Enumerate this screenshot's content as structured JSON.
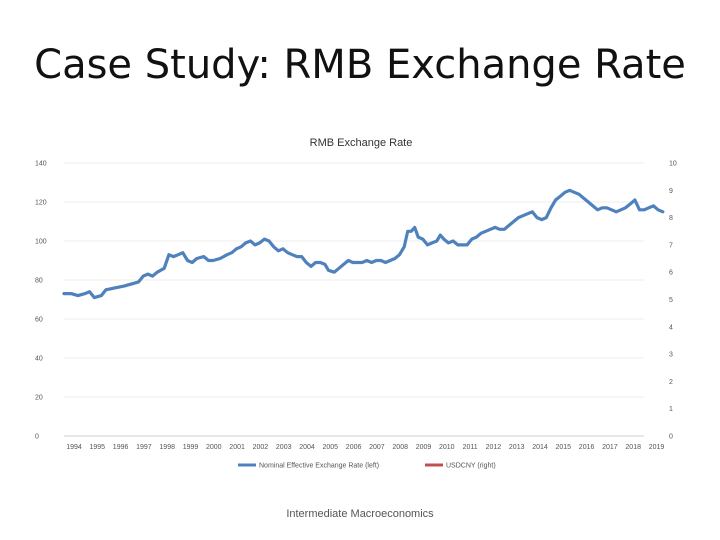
{
  "slide": {
    "title": "Case Study: RMB Exchange Rate",
    "footer": "Intermediate Macroeconomics"
  },
  "chart_data": {
    "type": "line",
    "title": "RMB Exchange Rate",
    "xlabel": "",
    "ylabel_left": "",
    "ylabel_right": "",
    "x_categories": [
      "1994",
      "1995",
      "1996",
      "1997",
      "1998",
      "1999",
      "2000",
      "2001",
      "2002",
      "2003",
      "2004",
      "2005",
      "2006",
      "2007",
      "2008",
      "2009",
      "2010",
      "2011",
      "2012",
      "2013",
      "2014",
      "2015",
      "2016",
      "2017",
      "2018",
      "2019"
    ],
    "y_left_ticks": [
      0,
      20,
      40,
      60,
      80,
      100,
      120,
      140
    ],
    "y_right_ticks": [
      0,
      1,
      2,
      3,
      4,
      5,
      6,
      7,
      8,
      9,
      10
    ],
    "ylim_left": [
      0,
      140
    ],
    "ylim_right": [
      0,
      10
    ],
    "grid": true,
    "legend_position": "bottom",
    "series": [
      {
        "name": "Nominal Effective Exchange Rate (left)",
        "axis": "left",
        "color": "#4f81bd",
        "points": [
          [
            1994.0,
            73
          ],
          [
            1994.3,
            73
          ],
          [
            1994.6,
            72
          ],
          [
            1994.9,
            73
          ],
          [
            1995.1,
            74
          ],
          [
            1995.3,
            71
          ],
          [
            1995.6,
            72
          ],
          [
            1995.8,
            75
          ],
          [
            1996.2,
            76
          ],
          [
            1996.6,
            77
          ],
          [
            1996.9,
            78
          ],
          [
            1997.2,
            79
          ],
          [
            1997.4,
            82
          ],
          [
            1997.6,
            83
          ],
          [
            1997.8,
            82
          ],
          [
            1998.0,
            84
          ],
          [
            1998.3,
            86
          ],
          [
            1998.5,
            93
          ],
          [
            1998.7,
            92
          ],
          [
            1998.9,
            93
          ],
          [
            1999.1,
            94
          ],
          [
            1999.3,
            90
          ],
          [
            1999.5,
            89
          ],
          [
            1999.7,
            91
          ],
          [
            2000.0,
            92
          ],
          [
            2000.2,
            90
          ],
          [
            2000.4,
            90
          ],
          [
            2000.7,
            91
          ],
          [
            2001.0,
            93
          ],
          [
            2001.2,
            94
          ],
          [
            2001.4,
            96
          ],
          [
            2001.6,
            97
          ],
          [
            2001.8,
            99
          ],
          [
            2002.0,
            100
          ],
          [
            2002.2,
            98
          ],
          [
            2002.4,
            99
          ],
          [
            2002.6,
            101
          ],
          [
            2002.8,
            100
          ],
          [
            2003.0,
            97
          ],
          [
            2003.2,
            95
          ],
          [
            2003.4,
            96
          ],
          [
            2003.6,
            94
          ],
          [
            2003.8,
            93
          ],
          [
            2004.0,
            92
          ],
          [
            2004.2,
            92
          ],
          [
            2004.4,
            89
          ],
          [
            2004.6,
            87
          ],
          [
            2004.8,
            89
          ],
          [
            2005.0,
            89
          ],
          [
            2005.2,
            88
          ],
          [
            2005.35,
            85
          ],
          [
            2005.6,
            84
          ],
          [
            2005.8,
            86
          ],
          [
            2006.0,
            88
          ],
          [
            2006.2,
            90
          ],
          [
            2006.4,
            89
          ],
          [
            2006.6,
            89
          ],
          [
            2006.8,
            89
          ],
          [
            2007.0,
            90
          ],
          [
            2007.2,
            89
          ],
          [
            2007.4,
            90
          ],
          [
            2007.6,
            90
          ],
          [
            2007.8,
            89
          ],
          [
            2008.0,
            90
          ],
          [
            2008.2,
            91
          ],
          [
            2008.4,
            93
          ],
          [
            2008.6,
            97
          ],
          [
            2008.75,
            105
          ],
          [
            2008.9,
            105
          ],
          [
            2009.05,
            107
          ],
          [
            2009.2,
            102
          ],
          [
            2009.4,
            101
          ],
          [
            2009.6,
            98
          ],
          [
            2009.8,
            99
          ],
          [
            2010.0,
            100
          ],
          [
            2010.15,
            103
          ],
          [
            2010.3,
            101
          ],
          [
            2010.5,
            99
          ],
          [
            2010.7,
            100
          ],
          [
            2010.9,
            98
          ],
          [
            2011.1,
            98
          ],
          [
            2011.3,
            98
          ],
          [
            2011.5,
            101
          ],
          [
            2011.7,
            102
          ],
          [
            2011.9,
            104
          ],
          [
            2012.1,
            105
          ],
          [
            2012.3,
            106
          ],
          [
            2012.5,
            107
          ],
          [
            2012.7,
            106
          ],
          [
            2012.9,
            106
          ],
          [
            2013.1,
            108
          ],
          [
            2013.3,
            110
          ],
          [
            2013.5,
            112
          ],
          [
            2013.7,
            113
          ],
          [
            2013.9,
            114
          ],
          [
            2014.1,
            115
          ],
          [
            2014.3,
            112
          ],
          [
            2014.5,
            111
          ],
          [
            2014.7,
            112
          ],
          [
            2014.9,
            117
          ],
          [
            2015.1,
            121
          ],
          [
            2015.3,
            123
          ],
          [
            2015.5,
            125
          ],
          [
            2015.7,
            126
          ],
          [
            2015.9,
            125
          ],
          [
            2016.1,
            124
          ],
          [
            2016.3,
            122
          ],
          [
            2016.5,
            120
          ],
          [
            2016.7,
            118
          ],
          [
            2016.9,
            116
          ],
          [
            2017.1,
            117
          ],
          [
            2017.3,
            117
          ],
          [
            2017.5,
            116
          ],
          [
            2017.7,
            115
          ],
          [
            2017.9,
            116
          ],
          [
            2018.1,
            117
          ],
          [
            2018.3,
            119
          ],
          [
            2018.5,
            121
          ],
          [
            2018.7,
            116
          ],
          [
            2018.9,
            116
          ],
          [
            2019.1,
            117
          ],
          [
            2019.3,
            118
          ],
          [
            2019.5,
            116
          ],
          [
            2019.7,
            115
          ]
        ]
      },
      {
        "name": "USDCNY (right)",
        "axis": "right",
        "color": "#c0504d",
        "points": []
      }
    ]
  }
}
